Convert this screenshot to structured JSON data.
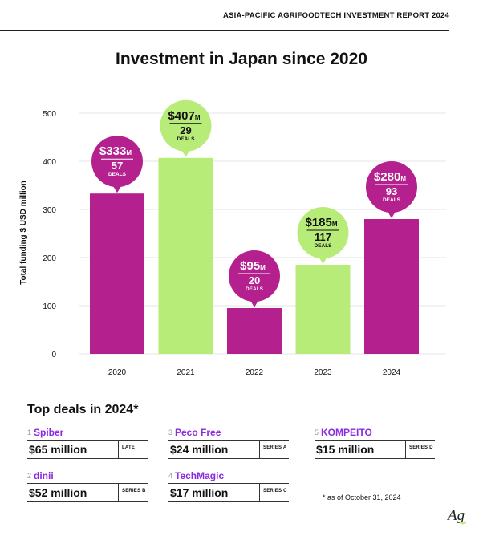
{
  "header": {
    "report_title": "ASIA-PACIFIC AGRIFOODTECH INVESTMENT REPORT 2024"
  },
  "chart_data": {
    "type": "bar",
    "title": "Investment in Japan since 2020",
    "ylabel": "Total funding $ USD million",
    "xlabel": "",
    "ylim": [
      0,
      500
    ],
    "yticks": [
      0,
      100,
      200,
      300,
      400,
      500
    ],
    "categories": [
      "2020",
      "2021",
      "2022",
      "2023",
      "2024"
    ],
    "values": [
      333,
      407,
      95,
      185,
      280
    ],
    "bubble_amounts": [
      "$333",
      "$407",
      "$95",
      "$185",
      "$280"
    ],
    "bubble_unit": "M",
    "deal_counts": [
      "57",
      "29",
      "20",
      "117",
      "93"
    ],
    "deals_word": "DEALS",
    "bar_colors": [
      "#b5208f",
      "#b8ec78",
      "#b5208f",
      "#b8ec78",
      "#b5208f"
    ],
    "bubble_text_colors": [
      "#ffffff",
      "#111111",
      "#ffffff",
      "#111111",
      "#ffffff"
    ],
    "grid": true
  },
  "top_deals": {
    "title": "Top deals in 2024*",
    "deals": [
      {
        "rank": "1",
        "company": "Spiber",
        "amount": "$65 million",
        "stage": "LATE"
      },
      {
        "rank": "2",
        "company": "dinii",
        "amount": "$52 million",
        "stage": "SERIES B"
      },
      {
        "rank": "3",
        "company": "Peco Free",
        "amount": "$24 million",
        "stage": "SERIES A"
      },
      {
        "rank": "4",
        "company": "TechMagic",
        "amount": "$17 million",
        "stage": "SERIES C"
      },
      {
        "rank": "5",
        "company": "KOMPEITO",
        "amount": "$15 million",
        "stage": "SERIES D"
      }
    ],
    "footnote": "* as of October 31, 2024"
  },
  "colors": {
    "accent_magenta": "#b5208f",
    "accent_green": "#b8ec78",
    "company_purple": "#8a2be2"
  },
  "logo": {
    "icon": "ag-logo-icon",
    "letters": "Ag"
  }
}
